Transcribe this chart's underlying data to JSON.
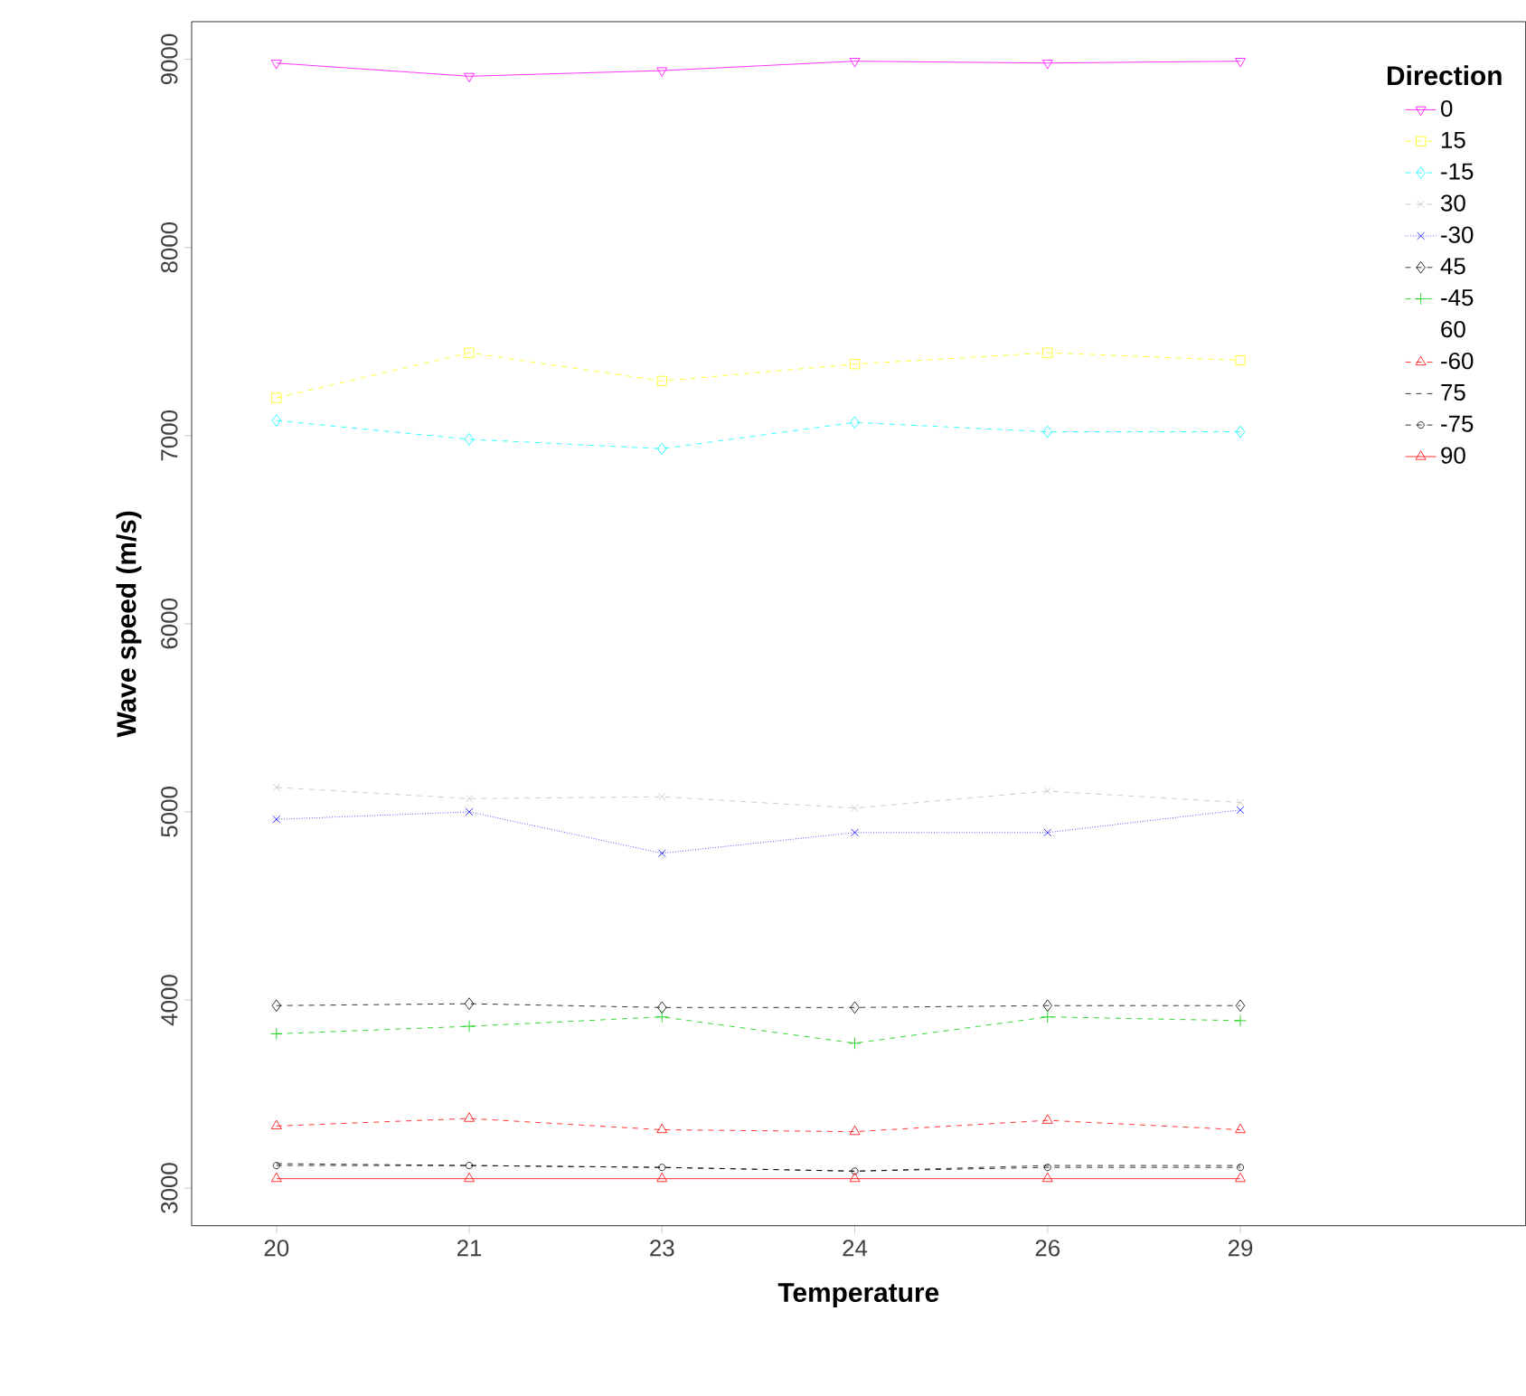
{
  "chart_data": {
    "type": "line",
    "xlabel": "Temperature",
    "ylabel": "Wave speed (m/s)",
    "legend_title": "Direction",
    "legend": "top right",
    "grid": false,
    "categories": [
      "20",
      "21",
      "23",
      "24",
      "26",
      "29"
    ],
    "ylim": [
      2800,
      9200
    ],
    "yticks": [
      3000,
      4000,
      5000,
      6000,
      7000,
      8000,
      9000
    ],
    "series": [
      {
        "name": "0",
        "color": "#ff00ff",
        "line_style": "solid",
        "marker": "triangle_down",
        "values": [
          8980,
          8910,
          8940,
          8990,
          8980,
          8990
        ]
      },
      {
        "name": "15",
        "color": "#ffff00",
        "line_style": "dashed",
        "marker": "square",
        "values": [
          7200,
          7440,
          7290,
          7380,
          7440,
          7400
        ]
      },
      {
        "name": "-15",
        "color": "#00ffff",
        "line_style": "dashed",
        "marker": "diamond",
        "values": [
          7080,
          6980,
          6930,
          7070,
          7020,
          7020
        ]
      },
      {
        "name": "30",
        "color": "#bebebe",
        "line_style": "dashed",
        "marker": "cross",
        "values": [
          5130,
          5070,
          5080,
          5020,
          5110,
          5050
        ]
      },
      {
        "name": "-30",
        "color": "#0000ff",
        "line_style": "dotted",
        "marker": "cross",
        "values": [
          4960,
          5000,
          4780,
          4890,
          4890,
          5010
        ]
      },
      {
        "name": "45",
        "color": "#000000",
        "line_style": "dashed",
        "marker": "diamond",
        "values": [
          3970,
          3980,
          3960,
          3960,
          3970,
          3970
        ]
      },
      {
        "name": "-45",
        "color": "#00cd00",
        "line_style": "dashed",
        "marker": "plus",
        "values": [
          3820,
          3860,
          3910,
          3770,
          3910,
          3890
        ]
      },
      {
        "name": "60",
        "values": [
          null,
          null,
          null,
          null,
          null,
          null
        ]
      },
      {
        "name": "-60",
        "color": "#ff0000",
        "line_style": "dashed",
        "marker": "triangle",
        "values": [
          3330,
          3370,
          3310,
          3300,
          3360,
          3310
        ]
      },
      {
        "name": "75",
        "color": "#000000",
        "line_style": "dashed",
        "marker": "none",
        "values": [
          3130,
          3120,
          3110,
          3090,
          3120,
          3120
        ]
      },
      {
        "name": "-75",
        "color": "#000000",
        "line_style": "dashed",
        "marker": "circle",
        "values": [
          3120,
          3120,
          3110,
          3090,
          3110,
          3110
        ]
      },
      {
        "name": "90",
        "color": "#ff0000",
        "line_style": "solid",
        "marker": "triangle",
        "values": [
          3050,
          3050,
          3050,
          3050,
          3050,
          3050
        ]
      }
    ]
  }
}
